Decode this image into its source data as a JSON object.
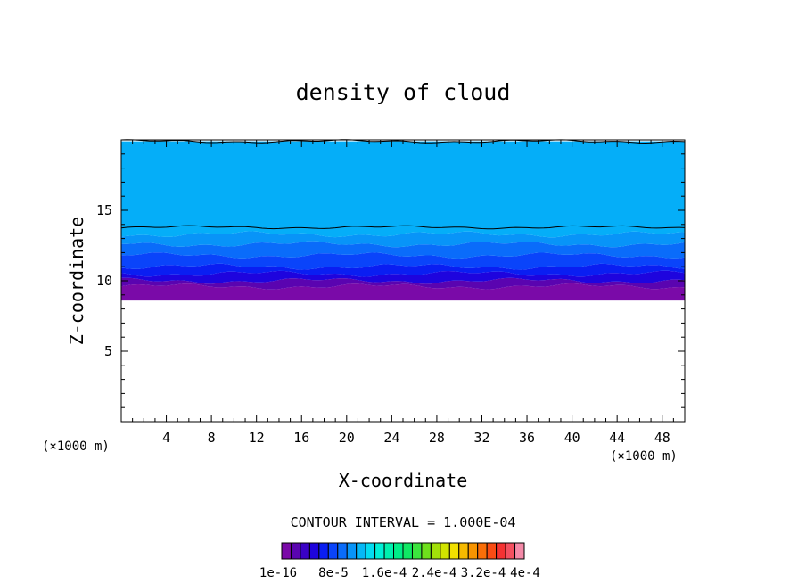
{
  "chart_data": {
    "type": "contour",
    "title": "density of cloud",
    "xlabel": "X-coordinate",
    "ylabel": "Z-coordinate",
    "x_unit_left": "(×1000 m)",
    "x_unit_right": "(×1000 m)",
    "xlim": [
      0,
      50
    ],
    "ylim": [
      0,
      20
    ],
    "x_ticks": [
      4,
      8,
      12,
      16,
      20,
      24,
      28,
      32,
      36,
      40,
      44,
      48
    ],
    "x_tick_labels": [
      "4",
      "8",
      "12",
      "16",
      "20",
      "24",
      "28",
      "32",
      "36",
      "40",
      "44",
      "48"
    ],
    "y_ticks": [
      5,
      10,
      15
    ],
    "y_tick_labels": [
      "5",
      "10",
      "15"
    ],
    "contour_interval_text": "CONTOUR INTERVAL = 1.000E-04",
    "colorbar": {
      "labels": [
        "1e-16",
        "8e-5",
        "1.6e-4",
        "2.4e-4",
        "3.2e-4",
        "4e-4"
      ],
      "colors": [
        "#7a0aa8",
        "#5a04b0",
        "#3a02c6",
        "#1e04de",
        "#0a1ef2",
        "#0a44fa",
        "#0a6cfa",
        "#0894f8",
        "#05b8f6",
        "#03dcf0",
        "#00f0d6",
        "#00f0ae",
        "#00ee88",
        "#10e864",
        "#3ce43e",
        "#6ee01c",
        "#a2e00a",
        "#d2e400",
        "#f2e000",
        "#f6ba00",
        "#f89400",
        "#fa6e08",
        "#fa4c14",
        "#f63232",
        "#f45060",
        "#f48aa8"
      ]
    },
    "bands": [
      {
        "z_bottom": 8.6,
        "z_top": 9.6,
        "color": "#7a0aa8"
      },
      {
        "z_bottom": 9.6,
        "z_top": 10.0,
        "color": "#5a04b0"
      },
      {
        "z_bottom": 10.0,
        "z_top": 10.5,
        "color": "#1e04de"
      },
      {
        "z_bottom": 10.5,
        "z_top": 11.0,
        "color": "#0a1ef2"
      },
      {
        "z_bottom": 11.0,
        "z_top": 11.8,
        "color": "#0a44fa"
      },
      {
        "z_bottom": 11.8,
        "z_top": 12.6,
        "color": "#0a6cfa"
      },
      {
        "z_bottom": 12.6,
        "z_top": 13.3,
        "color": "#0894f8"
      },
      {
        "z_bottom": 13.3,
        "z_top": 19.9,
        "color": "#05aef8"
      }
    ]
  }
}
